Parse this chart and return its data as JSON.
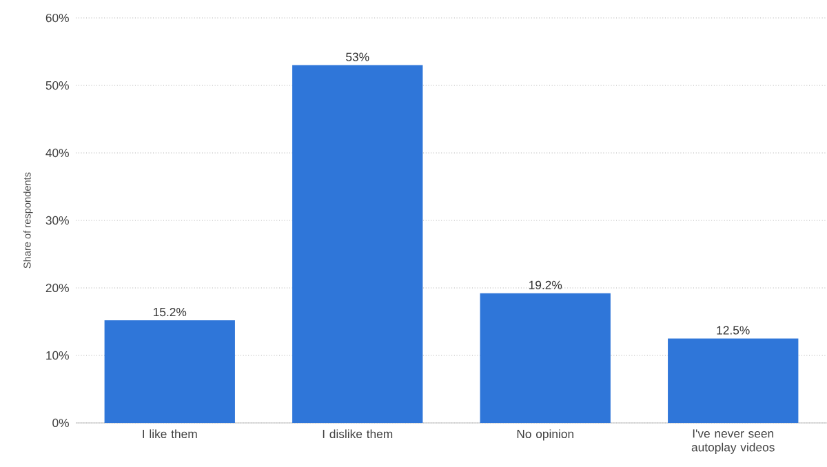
{
  "chart_data": {
    "type": "bar",
    "ylabel": "Share of respondents",
    "categories": [
      "I like them",
      "I dislike them",
      "No opinion",
      "I've never seen autoplay videos"
    ],
    "values": [
      15.2,
      53,
      19.2,
      12.5
    ],
    "value_labels": [
      "15.2%",
      "53%",
      "19.2%",
      "12.5%"
    ],
    "color": "#2f76d9",
    "ylim": [
      0,
      60
    ],
    "yticks": [
      {
        "value": 0,
        "label": "0%"
      },
      {
        "value": 10,
        "label": "10%"
      },
      {
        "value": 20,
        "label": "20%"
      },
      {
        "value": 30,
        "label": "30%"
      },
      {
        "value": 40,
        "label": "40%"
      },
      {
        "value": 50,
        "label": "50%"
      },
      {
        "value": 60,
        "label": "60%"
      }
    ],
    "grid": "y"
  }
}
